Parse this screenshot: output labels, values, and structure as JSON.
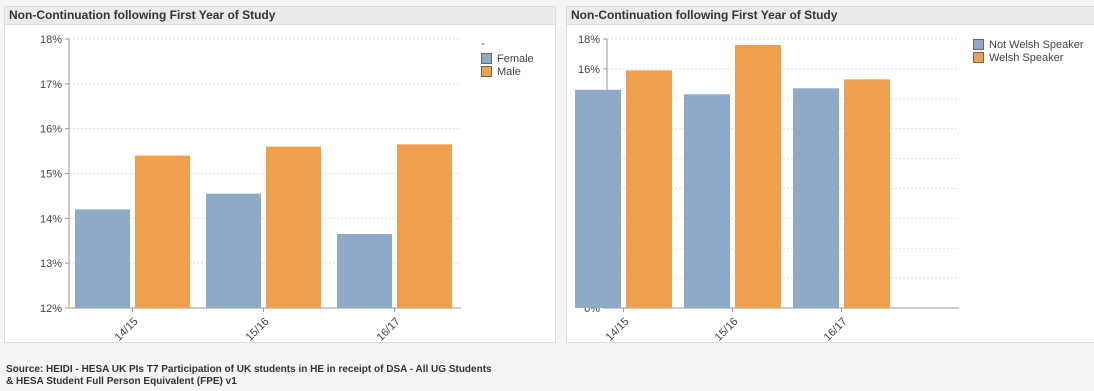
{
  "footer": {
    "line1": "Source: HEIDI - HESA UK PIs T7 Participation of UK students in HE in receipt of DSA - All UG Students",
    "line2": "& HESA Student Full Person Equivalent (FPE) v1"
  },
  "colors": {
    "blue": "#8fa9c9",
    "orange": "#f0a04d"
  },
  "chart_data": [
    {
      "type": "bar",
      "title": "Non-Continuation following First Year of Study",
      "categories": [
        "14/15",
        "15/16",
        "16/17"
      ],
      "legend_title": "-",
      "series": [
        {
          "name": "Female",
          "values": [
            14.2,
            14.55,
            13.65
          ]
        },
        {
          "name": "Male",
          "values": [
            15.4,
            15.6,
            15.65
          ]
        }
      ],
      "ylim": [
        12,
        18
      ],
      "yticks": [
        "12%",
        "13%",
        "14%",
        "15%",
        "16%",
        "17%",
        "18%"
      ],
      "legend_position": "top-right",
      "grid": true
    },
    {
      "type": "bar",
      "title": "Non-Continuation following First Year of Study",
      "categories": [
        "14/15",
        "15/16",
        "16/17"
      ],
      "series": [
        {
          "name": "Not Welsh Speaker",
          "values": [
            14.6,
            14.3,
            14.7
          ]
        },
        {
          "name": "Welsh Speaker",
          "values": [
            15.9,
            17.6,
            15.3
          ]
        }
      ],
      "ylim": [
        0,
        18
      ],
      "yticks": [
        "0%",
        "2%",
        "4%",
        "6%",
        "8%",
        "10%",
        "12%",
        "14%",
        "16%",
        "18%"
      ],
      "legend_position": "top-right",
      "grid": true
    }
  ]
}
